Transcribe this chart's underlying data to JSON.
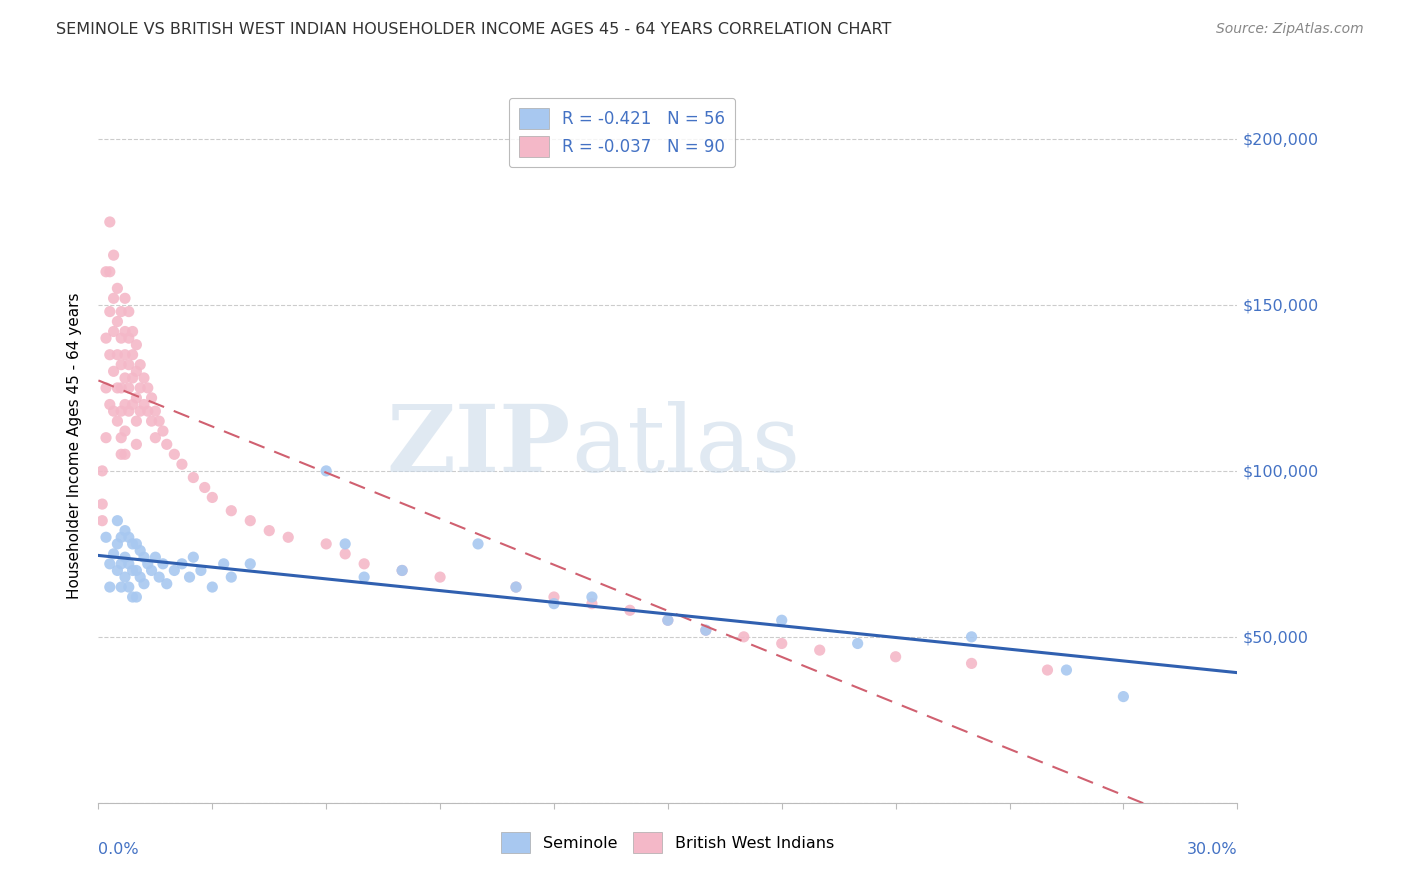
{
  "title": "SEMINOLE VS BRITISH WEST INDIAN HOUSEHOLDER INCOME AGES 45 - 64 YEARS CORRELATION CHART",
  "source": "Source: ZipAtlas.com",
  "ylabel": "Householder Income Ages 45 - 64 years",
  "xlim": [
    0.0,
    0.3
  ],
  "ylim": [
    0,
    215000
  ],
  "yticks": [
    0,
    50000,
    100000,
    150000,
    200000
  ],
  "seminole_R": "-0.421",
  "seminole_N": "56",
  "bwi_R": "-0.037",
  "bwi_N": "90",
  "seminole_color": "#a8c8f0",
  "bwi_color": "#f4b8c8",
  "seminole_line_color": "#3060b0",
  "bwi_line_color": "#d06070",
  "watermark1": "ZIP",
  "watermark2": "atlas",
  "seminole_x": [
    0.002,
    0.003,
    0.003,
    0.004,
    0.005,
    0.005,
    0.005,
    0.006,
    0.006,
    0.006,
    0.007,
    0.007,
    0.007,
    0.008,
    0.008,
    0.008,
    0.009,
    0.009,
    0.009,
    0.01,
    0.01,
    0.01,
    0.011,
    0.011,
    0.012,
    0.012,
    0.013,
    0.014,
    0.015,
    0.016,
    0.017,
    0.018,
    0.02,
    0.022,
    0.024,
    0.025,
    0.027,
    0.03,
    0.033,
    0.035,
    0.04,
    0.06,
    0.065,
    0.07,
    0.08,
    0.1,
    0.11,
    0.12,
    0.13,
    0.15,
    0.16,
    0.18,
    0.2,
    0.23,
    0.255,
    0.27
  ],
  "seminole_y": [
    80000,
    72000,
    65000,
    75000,
    85000,
    78000,
    70000,
    80000,
    72000,
    65000,
    82000,
    74000,
    68000,
    80000,
    72000,
    65000,
    78000,
    70000,
    62000,
    78000,
    70000,
    62000,
    76000,
    68000,
    74000,
    66000,
    72000,
    70000,
    74000,
    68000,
    72000,
    66000,
    70000,
    72000,
    68000,
    74000,
    70000,
    65000,
    72000,
    68000,
    72000,
    100000,
    78000,
    68000,
    70000,
    78000,
    65000,
    60000,
    62000,
    55000,
    52000,
    55000,
    48000,
    50000,
    40000,
    32000
  ],
  "bwi_x": [
    0.001,
    0.001,
    0.001,
    0.002,
    0.002,
    0.002,
    0.002,
    0.003,
    0.003,
    0.003,
    0.003,
    0.003,
    0.004,
    0.004,
    0.004,
    0.004,
    0.004,
    0.005,
    0.005,
    0.005,
    0.005,
    0.005,
    0.006,
    0.006,
    0.006,
    0.006,
    0.006,
    0.006,
    0.006,
    0.007,
    0.007,
    0.007,
    0.007,
    0.007,
    0.007,
    0.007,
    0.008,
    0.008,
    0.008,
    0.008,
    0.008,
    0.009,
    0.009,
    0.009,
    0.009,
    0.01,
    0.01,
    0.01,
    0.01,
    0.01,
    0.011,
    0.011,
    0.011,
    0.012,
    0.012,
    0.013,
    0.013,
    0.014,
    0.014,
    0.015,
    0.015,
    0.016,
    0.017,
    0.018,
    0.02,
    0.022,
    0.025,
    0.028,
    0.03,
    0.035,
    0.04,
    0.045,
    0.05,
    0.06,
    0.065,
    0.07,
    0.08,
    0.09,
    0.11,
    0.12,
    0.13,
    0.14,
    0.15,
    0.16,
    0.17,
    0.18,
    0.19,
    0.21,
    0.23,
    0.25
  ],
  "bwi_y": [
    100000,
    90000,
    85000,
    160000,
    140000,
    125000,
    110000,
    175000,
    160000,
    148000,
    135000,
    120000,
    165000,
    152000,
    142000,
    130000,
    118000,
    155000,
    145000,
    135000,
    125000,
    115000,
    148000,
    140000,
    132000,
    125000,
    118000,
    110000,
    105000,
    152000,
    142000,
    135000,
    128000,
    120000,
    112000,
    105000,
    148000,
    140000,
    132000,
    125000,
    118000,
    142000,
    135000,
    128000,
    120000,
    138000,
    130000,
    122000,
    115000,
    108000,
    132000,
    125000,
    118000,
    128000,
    120000,
    125000,
    118000,
    122000,
    115000,
    118000,
    110000,
    115000,
    112000,
    108000,
    105000,
    102000,
    98000,
    95000,
    92000,
    88000,
    85000,
    82000,
    80000,
    78000,
    75000,
    72000,
    70000,
    68000,
    65000,
    62000,
    60000,
    58000,
    55000,
    52000,
    50000,
    48000,
    46000,
    44000,
    42000,
    40000
  ]
}
